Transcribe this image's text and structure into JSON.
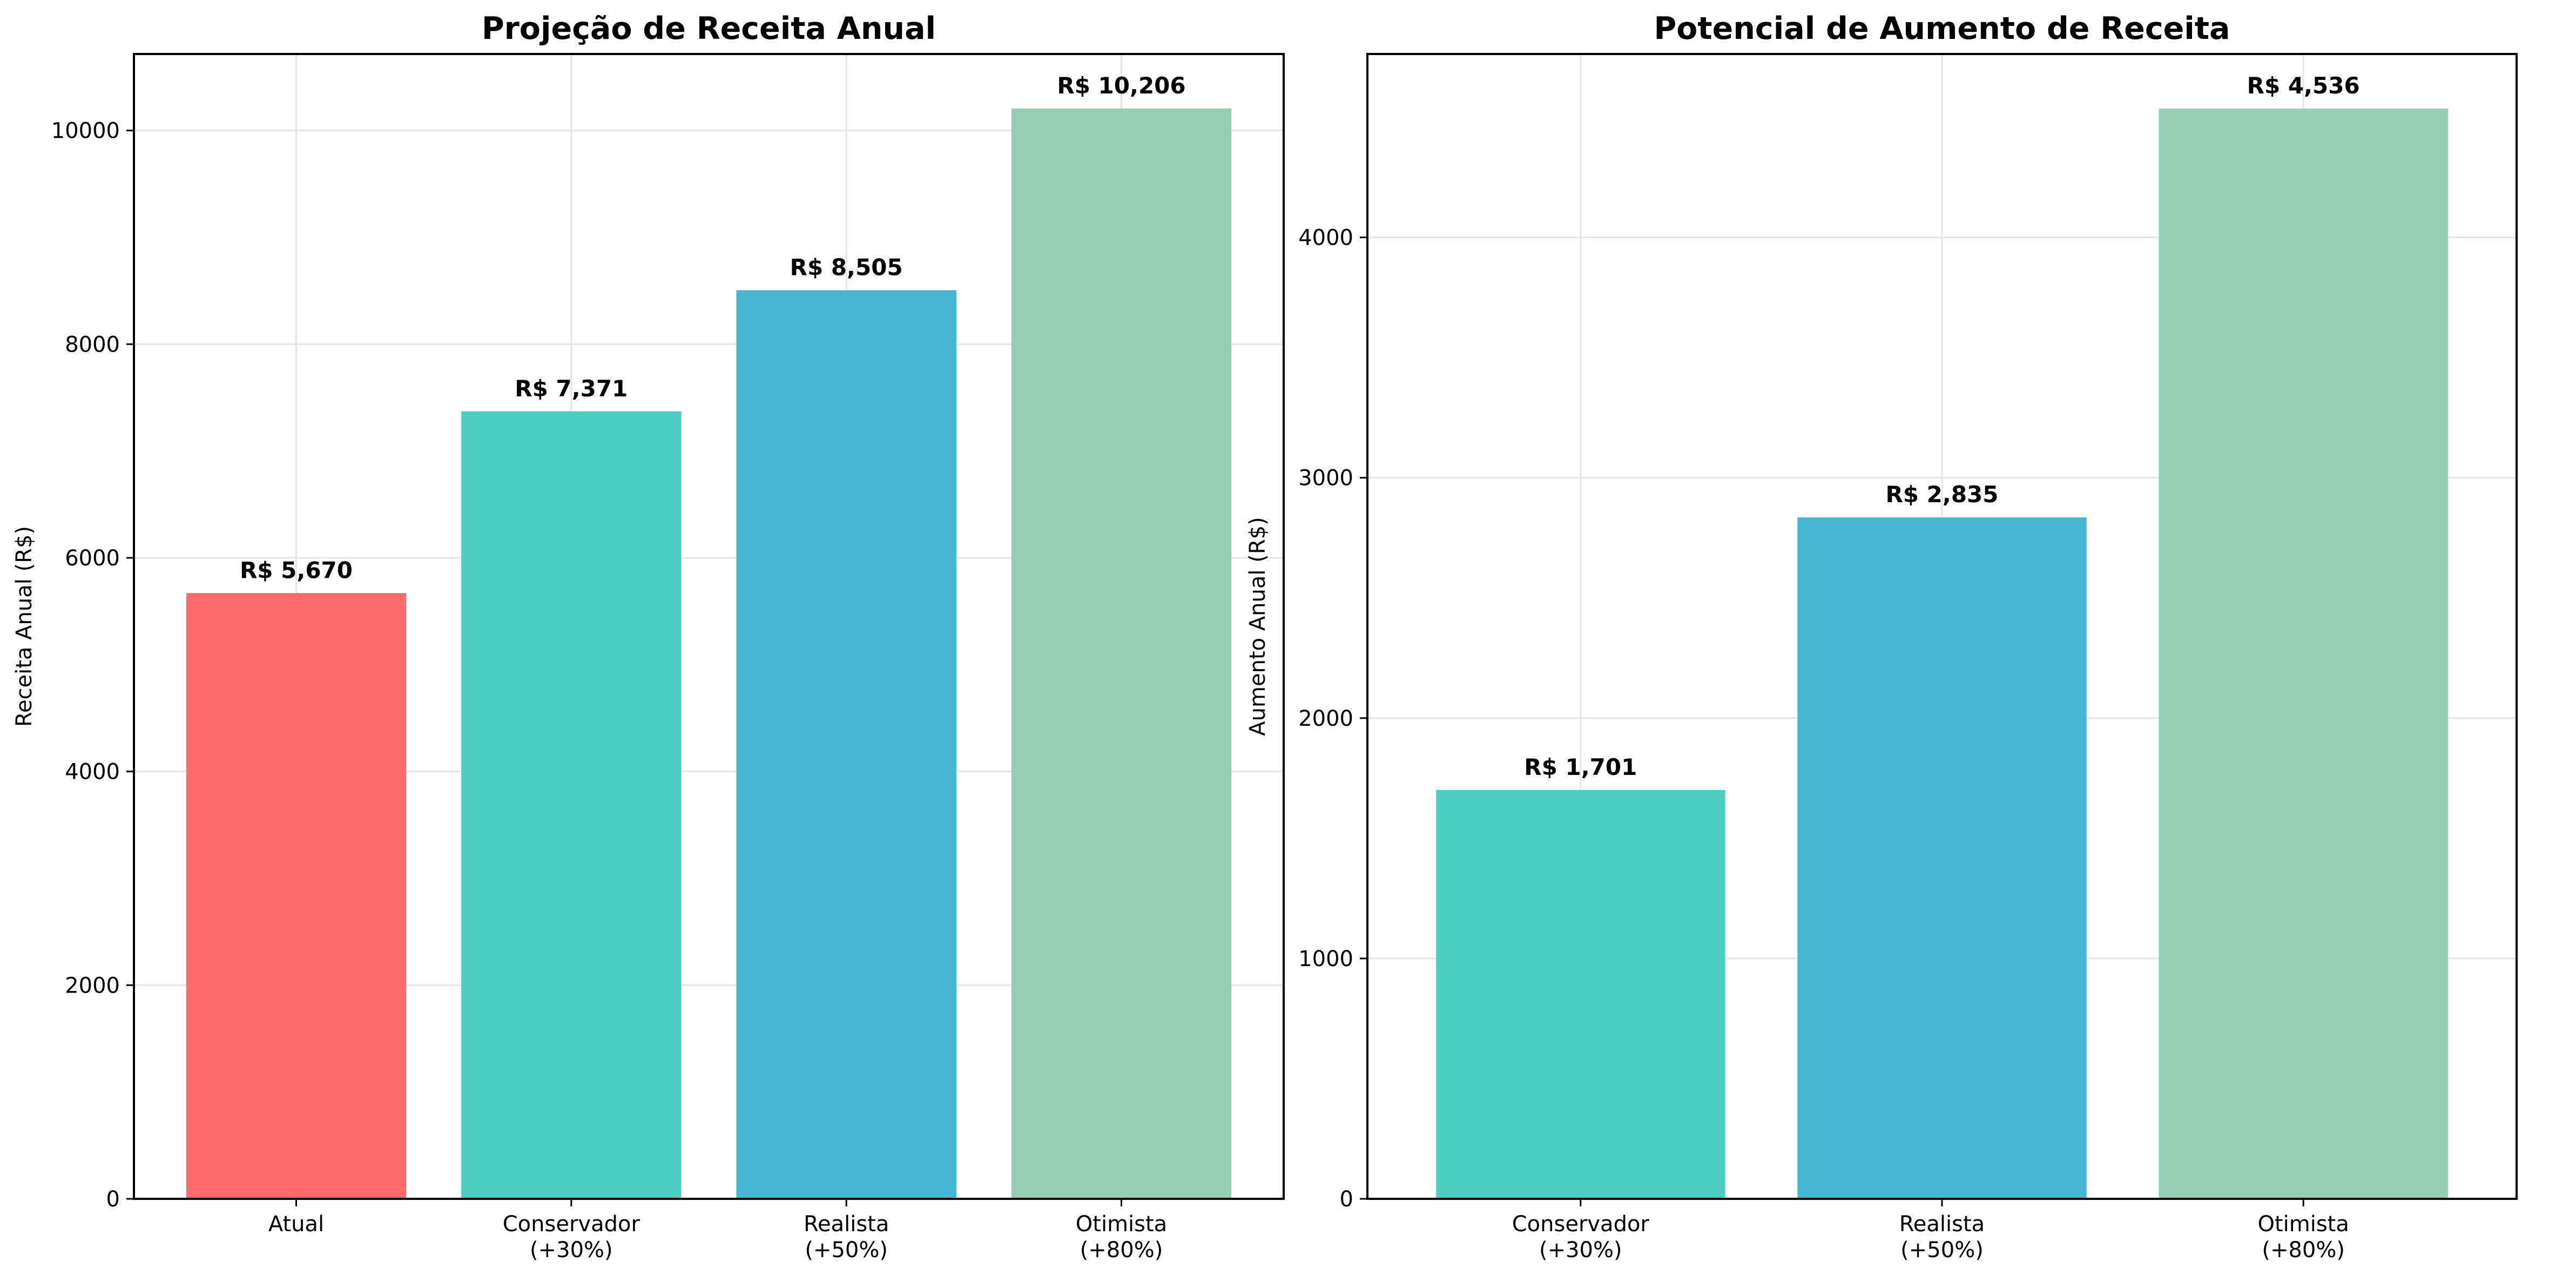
{
  "chart_data": [
    {
      "type": "bar",
      "title": "Projeção de Receita Anual",
      "xlabel": "",
      "ylabel": "Receita Anual (R$)",
      "categories": [
        "Atual",
        "Conservador\n(+30%)",
        "Realista\n(+50%)",
        "Otimista\n(+80%)"
      ],
      "values": [
        5670,
        7371,
        8505,
        10206
      ],
      "value_labels": [
        "R$ 5,670",
        "R$ 7,371",
        "R$ 8,505",
        "R$ 10,206"
      ],
      "colors": [
        "#FF6B6B",
        "#4ECDC4",
        "#45B7D1",
        "#96CEB4"
      ],
      "ylim": [
        0,
        10716
      ],
      "yticks": [
        0,
        2000,
        4000,
        6000,
        8000,
        10000
      ],
      "grid": true
    },
    {
      "type": "bar",
      "title": "Potencial de Aumento de Receita",
      "xlabel": "",
      "ylabel": "Aumento Anual (R$)",
      "categories": [
        "Conservador\n(+30%)",
        "Realista\n(+50%)",
        "Otimista\n(+80%)"
      ],
      "values": [
        1701,
        2835,
        4536
      ],
      "value_labels": [
        "R$ 1,701",
        "R$ 2,835",
        "R$ 4,536"
      ],
      "colors": [
        "#4ECDC4",
        "#45B7D1",
        "#96CEB4"
      ],
      "ylim": [
        0,
        4763
      ],
      "yticks": [
        0,
        1000,
        2000,
        3000,
        4000
      ],
      "grid": true
    }
  ]
}
